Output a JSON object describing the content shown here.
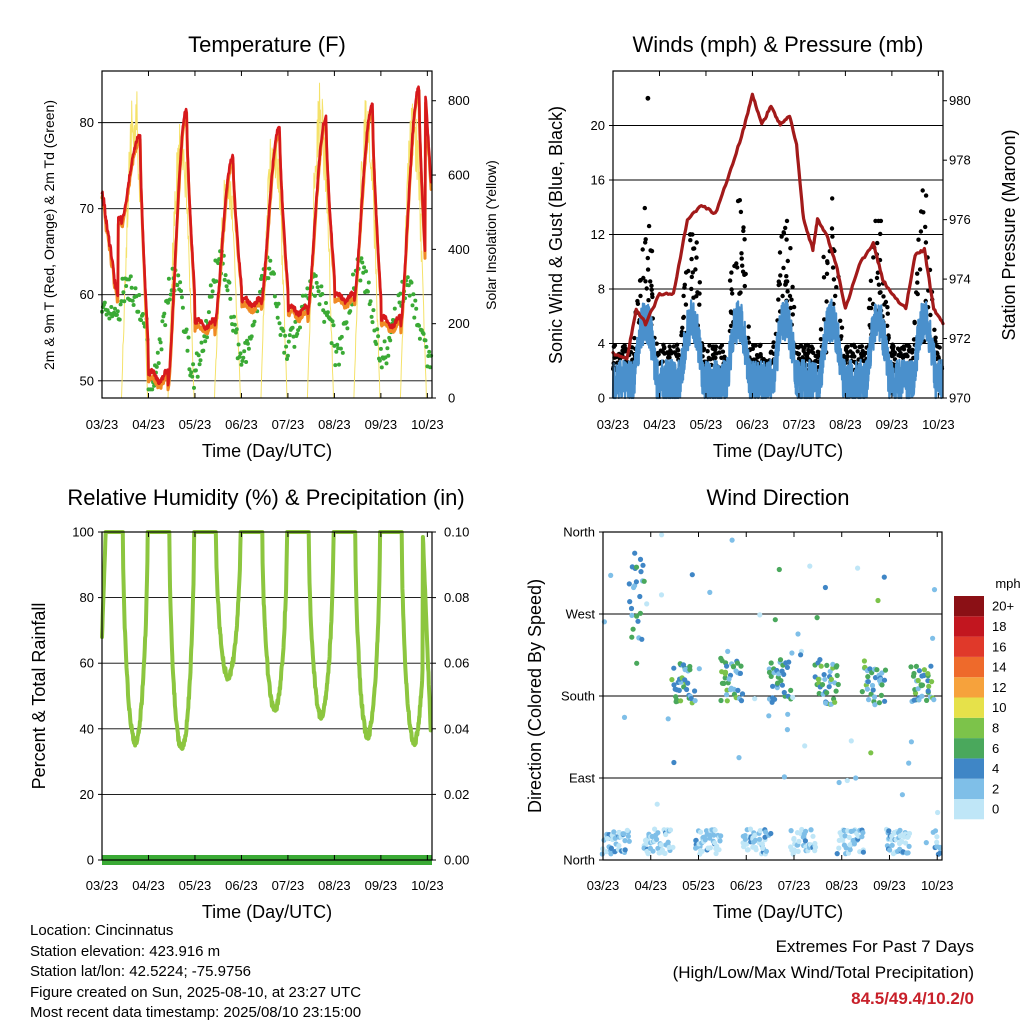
{
  "panels": {
    "temperature": {
      "title": "Temperature (F)",
      "ylabel_left": "2m & 9m T (Red, Orange) & 2m Td (Green)",
      "ylabel_right": "Solar Insolation (Yellow)",
      "xlabel": "Time (Day/UTC)"
    },
    "winds": {
      "title": "Winds (mph) & Pressure (mb)",
      "ylabel_left": "Sonic Wind & Gust (Blue, Black)",
      "ylabel_right": "Station Pressure (Maroon)",
      "xlabel": "Time (Day/UTC)"
    },
    "humidity": {
      "title": "Relative Humidity (%) & Precipitation (in)",
      "ylabel_left": "Percent & Total Rainfall",
      "xlabel": "Time (Day/UTC)"
    },
    "direction": {
      "title": "Wind Direction",
      "ylabel_left": "Direction (Colored By Speed)",
      "xlabel": "Time (Day/UTC)",
      "colorbar_title": "mph"
    }
  },
  "colors": {
    "temp2m": "#d7191c",
    "temp9m": "#f08a24",
    "dewpoint": "#3aaa35",
    "solar": "#f5e26a",
    "wind": "#4a90cc",
    "gust": "#000000",
    "pressure": "#a21a1a",
    "rh": "#8cc63f",
    "precip": "#3aaa35"
  },
  "info": {
    "location": "Location: Cincinnatus",
    "elevation": "Station elevation: 423.916 m",
    "latlon": "Station lat/lon: 42.5224; -75.9756",
    "created": "Figure created on Sun, 2025-08-10, at 23:27 UTC",
    "recent": "Most recent data timestamp: 2025/08/10 23:15:00"
  },
  "extremes": {
    "line1": "Extremes For Past 7 Days",
    "line2": "(High/Low/Max Wind/Total Precipitation)",
    "values": "84.5/49.4/10.2/0"
  },
  "chart_data": [
    {
      "id": "temperature",
      "type": "line",
      "title": "Temperature (F)",
      "xlabel": "Time (Day/UTC)",
      "ylabel": "2m & 9m T (Red, Orange) & 2m Td (Green)",
      "ylabel_right": "Solar Insolation (Yellow)",
      "x_ticks": [
        "03/23",
        "04/23",
        "05/23",
        "06/23",
        "07/23",
        "08/23",
        "09/23",
        "10/23"
      ],
      "xlim_days": [
        0,
        7.1
      ],
      "ylim": [
        48,
        86
      ],
      "y_ticks": [
        50,
        60,
        70,
        80
      ],
      "ylim_right": [
        0,
        880
      ],
      "y_ticks_right": [
        0,
        200,
        400,
        600,
        800
      ],
      "grid": true,
      "daily": {
        "tmax": [
          78.5,
          81.5,
          76,
          79.5,
          80.5,
          82,
          84
        ],
        "tmin": [
          68.5,
          49.5,
          56,
          58.5,
          57.5,
          59,
          56
        ],
        "td_high": [
          61,
          62,
          64,
          63,
          61,
          63,
          61
        ],
        "td_low": [
          56,
          49.5,
          52,
          53,
          55,
          53,
          53
        ],
        "solar_max": [
          860,
          790,
          650,
          800,
          860,
          830,
          820
        ]
      },
      "final_temp": 73
    },
    {
      "id": "winds",
      "type": "line",
      "title": "Winds (mph) & Pressure (mb)",
      "xlabel": "Time (Day/UTC)",
      "ylabel": "Sonic Wind & Gust (Blue, Black)",
      "ylabel_right": "Station Pressure (Maroon)",
      "x_ticks": [
        "03/23",
        "04/23",
        "05/23",
        "06/23",
        "07/23",
        "08/23",
        "09/23",
        "10/23"
      ],
      "xlim_days": [
        0,
        7.1
      ],
      "ylim": [
        0,
        24
      ],
      "y_ticks": [
        0,
        4,
        8,
        12,
        16,
        20
      ],
      "ylim_right": [
        970,
        981
      ],
      "y_ticks_right": [
        970,
        972,
        974,
        976,
        978,
        980
      ],
      "grid": true,
      "daily_peak_gust": [
        14,
        12,
        15,
        13,
        17,
        13,
        16
      ],
      "max_gust": 22,
      "pressure_points": [
        [
          0,
          971.5
        ],
        [
          0.3,
          971.3
        ],
        [
          0.5,
          973.0
        ],
        [
          0.7,
          972.5
        ],
        [
          1.0,
          973.5
        ],
        [
          1.3,
          973.5
        ],
        [
          1.6,
          976.0
        ],
        [
          1.9,
          976.5
        ],
        [
          2.2,
          976.2
        ],
        [
          2.5,
          977.5
        ],
        [
          2.8,
          979.0
        ],
        [
          3.0,
          980.2
        ],
        [
          3.2,
          979.2
        ],
        [
          3.4,
          979.8
        ],
        [
          3.6,
          979.2
        ],
        [
          3.8,
          979.5
        ],
        [
          3.95,
          978.5
        ],
        [
          4.1,
          976.0
        ],
        [
          4.3,
          975.0
        ],
        [
          4.4,
          976.0
        ],
        [
          4.6,
          975.5
        ],
        [
          4.8,
          974.5
        ],
        [
          5.0,
          973.0
        ],
        [
          5.3,
          974.5
        ],
        [
          5.6,
          975.2
        ],
        [
          5.8,
          974.0
        ],
        [
          6.0,
          973.5
        ],
        [
          6.3,
          973.0
        ],
        [
          6.5,
          974.8
        ],
        [
          6.7,
          975.0
        ],
        [
          6.9,
          973.0
        ],
        [
          7.1,
          972.5
        ]
      ]
    },
    {
      "id": "humidity",
      "type": "line",
      "title": "Relative Humidity (%) & Precipitation (in)",
      "xlabel": "Time (Day/UTC)",
      "ylabel": "Percent & Total Rainfall",
      "x_ticks": [
        "03/23",
        "04/23",
        "05/23",
        "06/23",
        "07/23",
        "08/23",
        "09/23",
        "10/23"
      ],
      "xlim_days": [
        0,
        7.1
      ],
      "ylim": [
        0,
        100
      ],
      "y_ticks": [
        0,
        20,
        40,
        60,
        80,
        100
      ],
      "ylim_right": [
        0,
        0.1
      ],
      "y_ticks_right": [
        "0.00",
        "0.02",
        "0.04",
        "0.06",
        "0.08",
        "0.10"
      ],
      "grid": true,
      "daily_rh_min": [
        36,
        34,
        56,
        46,
        44,
        38,
        36
      ],
      "rh_max": 100,
      "total_precip_in": 0.0
    },
    {
      "id": "direction",
      "type": "scatter",
      "title": "Wind Direction",
      "xlabel": "Time (Day/UTC)",
      "ylabel": "Direction (Colored By Speed)",
      "x_ticks": [
        "03/23",
        "04/23",
        "05/23",
        "06/23",
        "07/23",
        "08/23",
        "09/23",
        "10/23"
      ],
      "xlim_days": [
        0,
        7.1
      ],
      "y_ticks": [
        "North",
        "East",
        "South",
        "West",
        "North"
      ],
      "y_values_deg": [
        0,
        90,
        180,
        270,
        360
      ],
      "grid": true,
      "colorbar": {
        "title": "mph",
        "labels": [
          "0",
          "2",
          "4",
          "6",
          "8",
          "10",
          "12",
          "14",
          "16",
          "18",
          "20+"
        ],
        "colors": [
          "#bfe6f7",
          "#7fbfe8",
          "#3f86c6",
          "#4aa85c",
          "#7cc34a",
          "#e6e14a",
          "#f6a23c",
          "#ee6a2b",
          "#e0392a",
          "#c2161f",
          "#8b1015"
        ]
      },
      "clusters_deg": {
        "night": 20,
        "day": 195,
        "early_northerly": 340
      }
    }
  ]
}
